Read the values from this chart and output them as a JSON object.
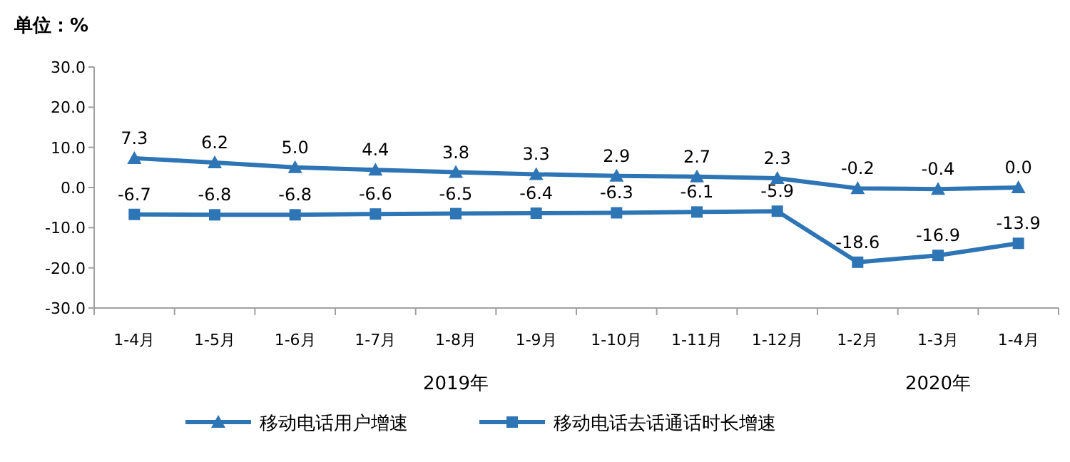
{
  "chart_data": {
    "type": "line",
    "title": "单位：%",
    "categories": [
      "1-4月",
      "1-5月",
      "1-6月",
      "1-7月",
      "1-8月",
      "1-9月",
      "1-10月",
      "1-11月",
      "1-12月",
      "1-2月",
      "1-3月",
      "1-4月"
    ],
    "series": [
      {
        "name": "移动电话用户增速",
        "color": "#2e75b6",
        "marker": "triangle",
        "values": [
          7.3,
          6.2,
          5.0,
          4.4,
          3.8,
          3.3,
          2.9,
          2.7,
          2.3,
          -0.2,
          -0.4,
          0.0
        ],
        "value_labels": [
          "7.3",
          "6.2",
          "5.0",
          "4.4",
          "3.8",
          "3.3",
          "2.9",
          "2.7",
          "2.3",
          "-0.2",
          "-0.4",
          "0.0"
        ]
      },
      {
        "name": "移动电话去话通话时长增速",
        "color": "#2e75b6",
        "marker": "square",
        "values": [
          -6.7,
          -6.8,
          -6.8,
          -6.6,
          -6.5,
          -6.4,
          -6.3,
          -6.1,
          -5.9,
          -18.6,
          -16.9,
          -13.9
        ],
        "value_labels": [
          "-6.7",
          "-6.8",
          "-6.8",
          "-6.6",
          "-6.5",
          "-6.4",
          "-6.3",
          "-6.1",
          "-5.9",
          "-18.6",
          "-16.9",
          "-13.9"
        ]
      }
    ],
    "ylim": [
      -30,
      30
    ],
    "yticks": [
      {
        "value": 30,
        "label": "30.0"
      },
      {
        "value": 20,
        "label": "20.0"
      },
      {
        "value": 10,
        "label": "10.0"
      },
      {
        "value": 0,
        "label": "0.0"
      },
      {
        "value": -10,
        "label": "-10.0"
      },
      {
        "value": -20,
        "label": "-20.0"
      },
      {
        "value": -30,
        "label": "-30.0"
      }
    ],
    "annotations": [
      "2019年",
      "2020年"
    ],
    "legend": "bottom",
    "grid": false,
    "line_style": "solid"
  }
}
